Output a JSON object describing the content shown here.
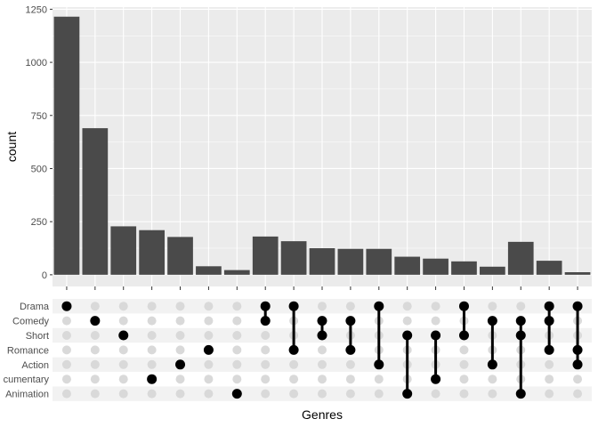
{
  "chart_data": {
    "type": "bar",
    "subtype": "upset",
    "xlabel": "Genres",
    "ylabel": "count",
    "ylim": [
      0,
      1260
    ],
    "yticks": [
      0,
      250,
      500,
      750,
      1000,
      1250
    ],
    "grid": true,
    "sets": [
      "Drama",
      "Comedy",
      "Short",
      "Romance",
      "Action",
      "Documentary",
      "Animation"
    ],
    "set_labels_shown": [
      "Drama",
      "Comedy",
      "Short",
      "Romance",
      "Action",
      "cumentary",
      "Animation"
    ],
    "intersections": [
      {
        "sets": [
          "Drama"
        ],
        "count": 1215
      },
      {
        "sets": [
          "Comedy"
        ],
        "count": 690
      },
      {
        "sets": [
          "Short"
        ],
        "count": 228
      },
      {
        "sets": [
          "Documentary"
        ],
        "count": 210
      },
      {
        "sets": [
          "Action"
        ],
        "count": 178
      },
      {
        "sets": [
          "Romance"
        ],
        "count": 40
      },
      {
        "sets": [
          "Animation"
        ],
        "count": 22
      },
      {
        "sets": [
          "Drama",
          "Comedy"
        ],
        "count": 180
      },
      {
        "sets": [
          "Drama",
          "Romance"
        ],
        "count": 158
      },
      {
        "sets": [
          "Comedy",
          "Short"
        ],
        "count": 125
      },
      {
        "sets": [
          "Comedy",
          "Romance"
        ],
        "count": 122
      },
      {
        "sets": [
          "Drama",
          "Action"
        ],
        "count": 122
      },
      {
        "sets": [
          "Short",
          "Animation"
        ],
        "count": 85
      },
      {
        "sets": [
          "Short",
          "Documentary"
        ],
        "count": 76
      },
      {
        "sets": [
          "Drama",
          "Short"
        ],
        "count": 63
      },
      {
        "sets": [
          "Comedy",
          "Action"
        ],
        "count": 38
      },
      {
        "sets": [
          "Comedy",
          "Short",
          "Animation"
        ],
        "count": 155
      },
      {
        "sets": [
          "Drama",
          "Comedy",
          "Romance"
        ],
        "count": 66
      },
      {
        "sets": [
          "Drama",
          "Romance",
          "Action"
        ],
        "count": 12
      }
    ]
  },
  "colors": {
    "panel": "#ebebeb",
    "grid": "#ffffff",
    "bar": "#4a4a4a",
    "dot_on": "#000000",
    "dot_off": "#d9d9d9",
    "stripe": "#f2f2f2"
  }
}
